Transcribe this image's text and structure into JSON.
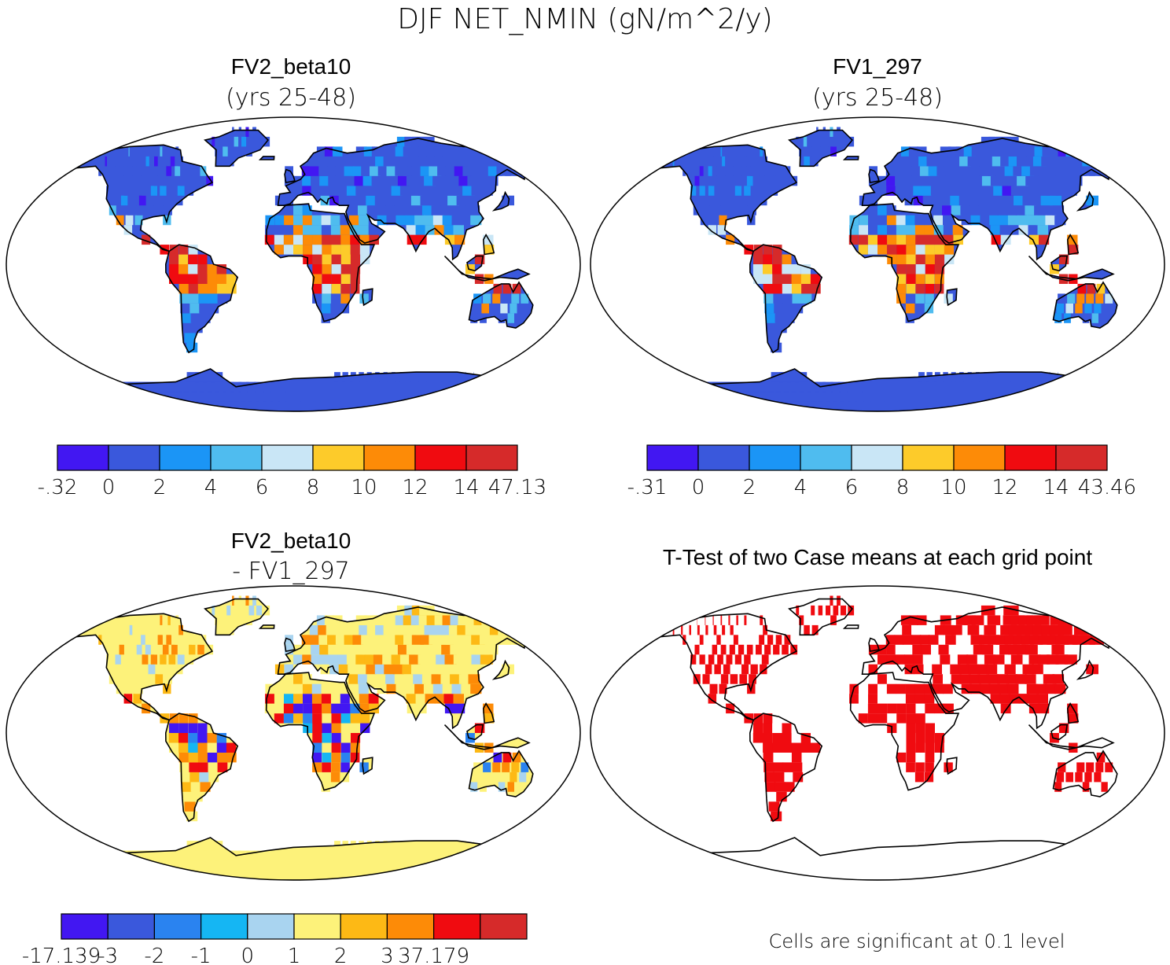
{
  "figure": {
    "title": "DJF NET_NMIN (gN/m^2/y)"
  },
  "panels": [
    {
      "id": "fv2",
      "title": "FV2_beta10",
      "subtitle": "(yrs 25-48)",
      "palette": [
        "#4217f2",
        "#3a58dc",
        "#1b95f6",
        "#4fbcef",
        "#c9e6f6",
        "#fdcb2a",
        "#fd8b07",
        "#f00b10",
        "#d62a2a"
      ],
      "colorbar_labels": [
        "-.32",
        "0",
        "2",
        "4",
        "6",
        "8",
        "10",
        "12",
        "14",
        "47.13"
      ],
      "land_dominant": "#3a58dc"
    },
    {
      "id": "fv1",
      "title": "FV1_297",
      "subtitle": "(yrs 25-48)",
      "palette": [
        "#4217f2",
        "#3a58dc",
        "#1b95f6",
        "#4fbcef",
        "#c9e6f6",
        "#fdcb2a",
        "#fd8b07",
        "#f00b10",
        "#d62a2a"
      ],
      "colorbar_labels": [
        "-.31",
        "0",
        "2",
        "4",
        "6",
        "8",
        "10",
        "12",
        "14",
        "43.46"
      ],
      "land_dominant": "#3a58dc"
    },
    {
      "id": "diff",
      "title": "FV2_beta10",
      "subtitle": "- FV1_297",
      "palette": [
        "#4217f2",
        "#3a58dc",
        "#2a83f0",
        "#15b6f3",
        "#a9d4f0",
        "#fdf27a",
        "#fdb915",
        "#fd8b07",
        "#f00b10",
        "#d62a2a"
      ],
      "colorbar_labels": [
        "-17.139",
        "-3",
        "-2",
        "-1",
        "0",
        "1",
        "2",
        "3",
        "37.179"
      ],
      "land_dominant": "#fdf27a"
    },
    {
      "id": "ttest",
      "title": "T-Test of two Case means at each grid point",
      "note": "Cells are significant at 0.1 level",
      "palette": [
        "#f00b10"
      ],
      "land_dominant": "#f00b10"
    }
  ]
}
